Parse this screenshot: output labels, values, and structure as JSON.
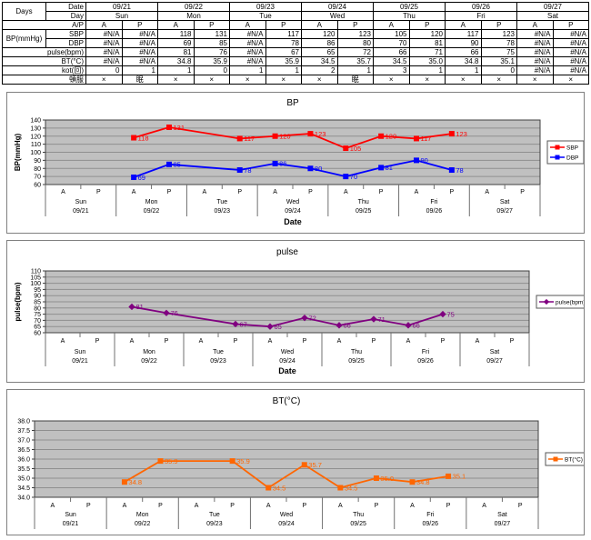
{
  "table": {
    "corner": "Days",
    "date_row": {
      "label": "Date",
      "values": [
        "09/21",
        "09/22",
        "09/23",
        "09/24",
        "09/25",
        "09/26",
        "09/27"
      ]
    },
    "day_row": {
      "label": "Day",
      "values": [
        "Sun",
        "Mon",
        "Tue",
        "Wed",
        "Thu",
        "Fri",
        "Sat"
      ]
    },
    "ap_row": {
      "label": "A/P",
      "values": [
        "A",
        "P",
        "A",
        "P",
        "A",
        "P",
        "A",
        "P",
        "A",
        "P",
        "A",
        "P",
        "A",
        "P"
      ]
    },
    "bp_group_label": "BP(mmHg)",
    "sbp_row": {
      "label": "SBP",
      "values": [
        "#N/A",
        "#N/A",
        "118",
        "131",
        "#N/A",
        "117",
        "120",
        "123",
        "105",
        "120",
        "117",
        "123",
        "#N/A",
        "#N/A"
      ]
    },
    "dbp_row": {
      "label": "DBP",
      "values": [
        "#N/A",
        "#N/A",
        "69",
        "85",
        "#N/A",
        "78",
        "86",
        "80",
        "70",
        "81",
        "90",
        "78",
        "#N/A",
        "#N/A"
      ]
    },
    "pulse_row": {
      "label": "pulse(bpm)",
      "values": [
        "#N/A",
        "#N/A",
        "81",
        "76",
        "#N/A",
        "67",
        "65",
        "72",
        "66",
        "71",
        "66",
        "75",
        "#N/A",
        "#N/A"
      ]
    },
    "bt_row": {
      "label": "BT(°C)",
      "values": [
        "#N/A",
        "#N/A",
        "34.8",
        "35.9",
        "#N/A",
        "35.9",
        "34.5",
        "35.7",
        "34.5",
        "35.0",
        "34.8",
        "35.1",
        "#N/A",
        "#N/A"
      ]
    },
    "kot_row": {
      "label": "kot(回)",
      "values": [
        "0",
        "1",
        "1",
        "0",
        "1",
        "1",
        "2",
        "1",
        "3",
        "1",
        "1",
        "0",
        "#N/A",
        "#N/A"
      ]
    },
    "tonpuku_row": {
      "label": "頓服",
      "values": [
        "×",
        "眠",
        "×",
        "×",
        "×",
        "×",
        "×",
        "眠",
        "×",
        "×",
        "×",
        "×",
        "×",
        "×"
      ]
    }
  },
  "chart_data": [
    {
      "type": "line",
      "title": "BP",
      "ylabel": "BP(mmHg)",
      "xlabel": "Date",
      "ylim": [
        60,
        140
      ],
      "ytick_step": 10,
      "ytick_decimals": 0,
      "label_decimals": 0,
      "grid": true,
      "plot_bg": "#c0c0c0",
      "legend_position": "right",
      "categories": {
        "ap": [
          "A",
          "P",
          "A",
          "P",
          "A",
          "P",
          "A",
          "P",
          "A",
          "P",
          "A",
          "P",
          "A",
          "P"
        ],
        "day": [
          "Sun",
          "Mon",
          "Tue",
          "Wed",
          "Thu",
          "Fri",
          "Sat"
        ],
        "date": [
          "09/21",
          "09/22",
          "09/23",
          "09/24",
          "09/25",
          "09/26",
          "09/27"
        ]
      },
      "series": [
        {
          "name": "SBP",
          "color": "#ff0000",
          "marker": "square",
          "values": [
            null,
            null,
            118,
            131,
            null,
            117,
            120,
            123,
            105,
            120,
            117,
            123,
            null,
            null
          ]
        },
        {
          "name": "DBP",
          "color": "#0000ff",
          "marker": "square",
          "values": [
            null,
            null,
            69,
            85,
            null,
            78,
            86,
            80,
            70,
            81,
            90,
            78,
            null,
            null
          ]
        }
      ]
    },
    {
      "type": "line",
      "title": "pulse",
      "ylabel": "pulse(bpm)",
      "xlabel": "Date",
      "ylim": [
        60,
        110
      ],
      "ytick_step": 5,
      "ytick_decimals": 0,
      "label_decimals": 0,
      "grid": true,
      "plot_bg": "#c0c0c0",
      "legend_position": "right",
      "categories": {
        "ap": [
          "A",
          "P",
          "A",
          "P",
          "A",
          "P",
          "A",
          "P",
          "A",
          "P",
          "A",
          "P",
          "A",
          "P"
        ],
        "day": [
          "Sun",
          "Mon",
          "Tue",
          "Wed",
          "Thu",
          "Fri",
          "Sat"
        ],
        "date": [
          "09/21",
          "09/22",
          "09/23",
          "09/24",
          "09/25",
          "09/26",
          "09/27"
        ]
      },
      "series": [
        {
          "name": "pulse(bpm)",
          "color": "#800080",
          "marker": "diamond",
          "values": [
            null,
            null,
            81,
            76,
            null,
            67,
            65,
            72,
            66,
            71,
            66,
            75,
            null,
            null
          ]
        }
      ]
    },
    {
      "type": "line",
      "title": "BT(°C)",
      "ylabel": "",
      "xlabel": "",
      "ylim": [
        34.0,
        38.0
      ],
      "ytick_step": 0.5,
      "ytick_decimals": 1,
      "label_decimals": 1,
      "grid": true,
      "plot_bg": "#c0c0c0",
      "legend_position": "right",
      "categories": {
        "ap": [
          "A",
          "P",
          "A",
          "P",
          "A",
          "P",
          "A",
          "P",
          "A",
          "P",
          "A",
          "P",
          "A",
          "P"
        ],
        "day": [
          "Sun",
          "Mon",
          "Tue",
          "Wed",
          "Thu",
          "Fri",
          "Sat"
        ],
        "date": [
          "09/21",
          "09/22",
          "09/23",
          "09/24",
          "09/25",
          "09/26",
          "09/27"
        ]
      },
      "series": [
        {
          "name": "BT(°C)",
          "color": "#ff6600",
          "marker": "square",
          "values": [
            null,
            null,
            34.8,
            35.9,
            null,
            35.9,
            34.5,
            35.7,
            34.5,
            35.0,
            34.8,
            35.1,
            null,
            null
          ]
        }
      ]
    }
  ]
}
